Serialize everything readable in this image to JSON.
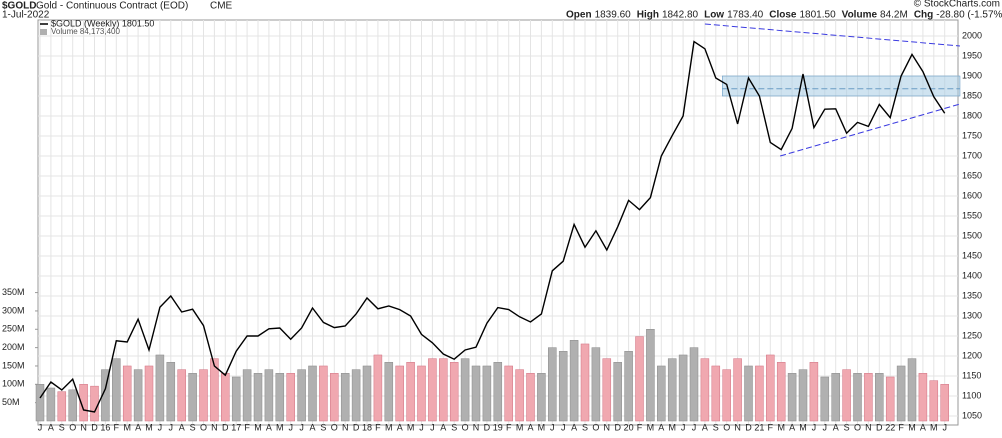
{
  "chart_data": {
    "type": "line",
    "symbol": "$GOLD",
    "title": "Gold - Continuous Contract (EOD)",
    "exchange": "CME",
    "date": "1-Jul-2022",
    "ohlc": [
      {
        "label": "Open",
        "value": "1839.60"
      },
      {
        "label": "High",
        "value": "1842.80"
      },
      {
        "label": "Low",
        "value": "1783.40"
      },
      {
        "label": "Close",
        "value": "1801.50"
      },
      {
        "label": "Volume",
        "value": "84.2M"
      },
      {
        "label": "Chg",
        "value": "-28.80 (-1.57%)"
      }
    ],
    "credit": "© StockCharts.com",
    "categories": [
      "J",
      "A",
      "S",
      "O",
      "N",
      "D",
      "16",
      "F",
      "M",
      "A",
      "M",
      "J",
      "J",
      "A",
      "S",
      "O",
      "N",
      "D",
      "17",
      "F",
      "M",
      "A",
      "M",
      "J",
      "J",
      "A",
      "S",
      "O",
      "N",
      "D",
      "18",
      "F",
      "M",
      "A",
      "M",
      "J",
      "J",
      "A",
      "S",
      "O",
      "N",
      "D",
      "19",
      "F",
      "M",
      "A",
      "M",
      "J",
      "J",
      "A",
      "S",
      "O",
      "N",
      "D",
      "20",
      "F",
      "M",
      "A",
      "M",
      "J",
      "J",
      "A",
      "S",
      "O",
      "N",
      "D",
      "21",
      "F",
      "M",
      "A",
      "M",
      "J",
      "J",
      "A",
      "S",
      "O",
      "N",
      "D",
      "22",
      "F",
      "M",
      "A",
      "M",
      "J"
    ],
    "series": [
      {
        "name": "$GOLD (Weekly) 1801.50",
        "color": "#000000",
        "axis": "y",
        "values": [
          1095,
          1135,
          1115,
          1142,
          1065,
          1060,
          1118,
          1238,
          1235,
          1292,
          1215,
          1322,
          1350,
          1310,
          1317,
          1276,
          1175,
          1152,
          1212,
          1250,
          1250,
          1268,
          1270,
          1242,
          1270,
          1320,
          1284,
          1271,
          1275,
          1305,
          1345,
          1318,
          1325,
          1316,
          1300,
          1254,
          1233,
          1205,
          1192,
          1215,
          1222,
          1282,
          1321,
          1316,
          1298,
          1285,
          1305,
          1413,
          1437,
          1529,
          1472,
          1513,
          1465,
          1523,
          1589,
          1566,
          1596,
          1700,
          1751,
          1800,
          1986,
          1968,
          1895,
          1879,
          1780,
          1895,
          1850,
          1734,
          1716,
          1769,
          1905,
          1771,
          1817,
          1818,
          1757,
          1784,
          1774,
          1829,
          1796,
          1900,
          1954,
          1911,
          1848,
          1807
        ]
      },
      {
        "name": "Volume 84,173,400",
        "up_color": "#b0b0b0",
        "down_color": "#f0a8b0",
        "axis": "y2",
        "values": [
          100,
          90,
          80,
          85,
          100,
          95,
          140,
          170,
          150,
          140,
          150,
          180,
          160,
          140,
          130,
          140,
          170,
          130,
          120,
          140,
          130,
          140,
          130,
          130,
          140,
          150,
          150,
          130,
          130,
          140,
          150,
          180,
          160,
          150,
          160,
          150,
          170,
          170,
          160,
          170,
          150,
          150,
          160,
          150,
          140,
          130,
          130,
          200,
          190,
          220,
          210,
          200,
          170,
          160,
          190,
          230,
          250,
          150,
          170,
          180,
          200,
          170,
          150,
          140,
          170,
          150,
          150,
          180,
          160,
          130,
          140,
          160,
          120,
          130,
          140,
          130,
          130,
          130,
          120,
          150,
          170,
          130,
          110,
          100
        ]
      }
    ],
    "ylim": [
      1040,
      2040
    ],
    "yticks": [
      1050,
      1100,
      1150,
      1200,
      1250,
      1300,
      1350,
      1400,
      1450,
      1500,
      1550,
      1600,
      1650,
      1700,
      1750,
      1800,
      1850,
      1900,
      1950,
      2000
    ],
    "y2lim": [
      0,
      1093
    ],
    "y2ticks": [
      {
        "value": 50,
        "label": "50M"
      },
      {
        "value": 100,
        "label": "100M"
      },
      {
        "value": 150,
        "label": "150M"
      },
      {
        "value": 200,
        "label": "200M"
      },
      {
        "value": 250,
        "label": "250M"
      },
      {
        "value": 300,
        "label": "300M"
      },
      {
        "value": 350,
        "label": "350M"
      }
    ],
    "grid": true,
    "annotations": {
      "box": {
        "color": "#a8cce4",
        "x": [
          62.6,
          84.4
        ],
        "y": [
          1850,
          1900
        ],
        "mid": 1868
      },
      "trendlines": [
        {
          "color": "#3a3ae0",
          "x": [
            61,
            84.4
          ],
          "y": [
            2030,
            1975
          ]
        },
        {
          "color": "#3a3ae0",
          "x": [
            67.9,
            84.4
          ],
          "y": [
            1700,
            1830
          ]
        }
      ]
    }
  }
}
